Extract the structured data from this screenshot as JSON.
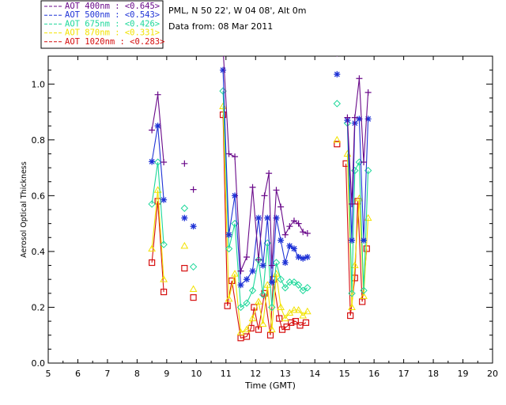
{
  "chart_data": {
    "type": "line",
    "header": {
      "line1": "PML, N 50 22', W 04 08', Alt 0m",
      "line2": "Data from: 08 Mar 2011"
    },
    "xlabel": "Time (GMT)",
    "ylabel": "Aerosol Optical Thickness",
    "xlim": [
      5,
      20
    ],
    "ylim": [
      0,
      1.1
    ],
    "xticks": [
      "5",
      "6",
      "7",
      "8",
      "9",
      "10",
      "11",
      "12",
      "13",
      "14",
      "15",
      "16",
      "17",
      "18",
      "19",
      "20"
    ],
    "yticks": [
      "0.0",
      "0.2",
      "0.4",
      "0.6",
      "0.8",
      "1.0"
    ],
    "legend_position": "top-left outside",
    "series": [
      {
        "name": "AOT  400nm : <0.645>",
        "color": "#6a0a8a",
        "marker": "plus",
        "segments": [
          [
            [
              8.5,
              0.835
            ],
            [
              8.7,
              0.962
            ],
            [
              8.9,
              0.72
            ]
          ],
          [
            [
              9.6,
              0.715
            ]
          ],
          [
            [
              9.9,
              0.622
            ]
          ],
          [
            [
              10.9,
              1.13
            ],
            [
              11.1,
              0.75
            ],
            [
              11.3,
              0.74
            ],
            [
              11.5,
              0.33
            ],
            [
              11.7,
              0.38
            ],
            [
              11.9,
              0.63
            ],
            [
              12.1,
              0.37
            ],
            [
              12.3,
              0.6
            ],
            [
              12.45,
              0.68
            ],
            [
              12.55,
              0.35
            ],
            [
              12.7,
              0.62
            ],
            [
              12.85,
              0.56
            ],
            [
              13.0,
              0.46
            ],
            [
              13.15,
              0.49
            ],
            [
              13.3,
              0.51
            ],
            [
              13.45,
              0.5
            ],
            [
              13.6,
              0.47
            ],
            [
              13.75,
              0.465
            ]
          ],
          [
            [
              14.75,
              1.11
            ]
          ],
          [
            [
              15.1,
              0.88
            ],
            [
              15.25,
              0.57
            ],
            [
              15.35,
              0.88
            ],
            [
              15.5,
              1.02
            ],
            [
              15.65,
              0.72
            ],
            [
              15.8,
              0.97
            ]
          ]
        ]
      },
      {
        "name": "AOT  500nm : <0.543>",
        "color": "#1f33d6",
        "marker": "asterisk",
        "segments": [
          [
            [
              8.5,
              0.722
            ],
            [
              8.7,
              0.85
            ],
            [
              8.9,
              0.585
            ]
          ],
          [
            [
              9.6,
              0.52
            ]
          ],
          [
            [
              9.9,
              0.49
            ]
          ],
          [
            [
              10.9,
              1.05
            ],
            [
              11.1,
              0.46
            ],
            [
              11.3,
              0.6
            ],
            [
              11.5,
              0.28
            ],
            [
              11.7,
              0.3
            ],
            [
              11.9,
              0.33
            ],
            [
              12.1,
              0.52
            ],
            [
              12.25,
              0.35
            ],
            [
              12.4,
              0.52
            ],
            [
              12.55,
              0.29
            ],
            [
              12.7,
              0.52
            ],
            [
              12.85,
              0.44
            ],
            [
              13.0,
              0.36
            ],
            [
              13.15,
              0.42
            ],
            [
              13.3,
              0.41
            ],
            [
              13.45,
              0.38
            ],
            [
              13.6,
              0.375
            ],
            [
              13.75,
              0.38
            ]
          ],
          [
            [
              14.75,
              1.035
            ]
          ],
          [
            [
              15.1,
              0.87
            ],
            [
              15.25,
              0.44
            ],
            [
              15.35,
              0.86
            ],
            [
              15.5,
              0.875
            ],
            [
              15.65,
              0.44
            ],
            [
              15.8,
              0.875
            ]
          ]
        ]
      },
      {
        "name": "AOT  675nm : <0.426>",
        "color": "#1ed89a",
        "marker": "diamond",
        "segments": [
          [
            [
              8.5,
              0.57
            ],
            [
              8.7,
              0.72
            ],
            [
              8.9,
              0.425
            ]
          ],
          [
            [
              9.6,
              0.555
            ]
          ],
          [
            [
              9.9,
              0.345
            ]
          ],
          [
            [
              10.9,
              0.975
            ],
            [
              11.1,
              0.41
            ],
            [
              11.3,
              0.5
            ],
            [
              11.5,
              0.2
            ],
            [
              11.7,
              0.215
            ],
            [
              11.9,
              0.26
            ],
            [
              12.1,
              0.37
            ],
            [
              12.25,
              0.245
            ],
            [
              12.4,
              0.43
            ],
            [
              12.55,
              0.2
            ],
            [
              12.7,
              0.36
            ],
            [
              12.85,
              0.3
            ],
            [
              13.0,
              0.27
            ],
            [
              13.15,
              0.29
            ],
            [
              13.3,
              0.29
            ],
            [
              13.45,
              0.28
            ],
            [
              13.6,
              0.26
            ],
            [
              13.75,
              0.27
            ]
          ],
          [
            [
              14.75,
              0.93
            ]
          ],
          [
            [
              15.1,
              0.86
            ],
            [
              15.25,
              0.25
            ],
            [
              15.35,
              0.69
            ],
            [
              15.5,
              0.72
            ],
            [
              15.65,
              0.26
            ],
            [
              15.8,
              0.69
            ]
          ]
        ]
      },
      {
        "name": "AOT  870nm : <0.331>",
        "color": "#f2e200",
        "marker": "triangle",
        "segments": [
          [
            [
              8.5,
              0.41
            ],
            [
              8.7,
              0.62
            ],
            [
              8.9,
              0.3
            ]
          ],
          [
            [
              9.6,
              0.42
            ]
          ],
          [
            [
              9.9,
              0.265
            ]
          ],
          [
            [
              10.9,
              0.92
            ],
            [
              11.1,
              0.23
            ],
            [
              11.3,
              0.32
            ],
            [
              11.5,
              0.11
            ],
            [
              11.7,
              0.12
            ],
            [
              11.9,
              0.16
            ],
            [
              12.1,
              0.22
            ],
            [
              12.25,
              0.14
            ],
            [
              12.4,
              0.28
            ],
            [
              12.55,
              0.12
            ],
            [
              12.7,
              0.32
            ],
            [
              12.85,
              0.2
            ],
            [
              13.0,
              0.16
            ],
            [
              13.15,
              0.18
            ],
            [
              13.3,
              0.19
            ],
            [
              13.45,
              0.19
            ],
            [
              13.6,
              0.17
            ],
            [
              13.75,
              0.185
            ]
          ],
          [
            [
              14.75,
              0.8
            ]
          ],
          [
            [
              15.1,
              0.75
            ],
            [
              15.25,
              0.2
            ],
            [
              15.35,
              0.35
            ],
            [
              15.5,
              0.59
            ],
            [
              15.65,
              0.24
            ],
            [
              15.8,
              0.52
            ]
          ]
        ]
      },
      {
        "name": "AOT 1020nm : <0.283>",
        "color": "#d60f0f",
        "marker": "square",
        "segments": [
          [
            [
              8.5,
              0.36
            ],
            [
              8.7,
              0.58
            ],
            [
              8.9,
              0.255
            ]
          ],
          [
            [
              9.6,
              0.34
            ]
          ],
          [
            [
              9.9,
              0.235
            ]
          ],
          [
            [
              10.9,
              0.89
            ],
            [
              11.05,
              0.205
            ],
            [
              11.2,
              0.295
            ],
            [
              11.5,
              0.09
            ],
            [
              11.7,
              0.095
            ],
            [
              11.85,
              0.125
            ],
            [
              11.95,
              0.2
            ],
            [
              12.1,
              0.12
            ],
            [
              12.3,
              0.25
            ],
            [
              12.5,
              0.1
            ],
            [
              12.6,
              0.3
            ],
            [
              12.8,
              0.16
            ],
            [
              12.9,
              0.12
            ],
            [
              13.05,
              0.13
            ],
            [
              13.2,
              0.145
            ],
            [
              13.35,
              0.15
            ],
            [
              13.5,
              0.135
            ],
            [
              13.7,
              0.145
            ]
          ],
          [
            [
              14.75,
              0.785
            ]
          ],
          [
            [
              15.05,
              0.715
            ],
            [
              15.2,
              0.17
            ],
            [
              15.35,
              0.305
            ],
            [
              15.45,
              0.58
            ],
            [
              15.6,
              0.22
            ],
            [
              15.75,
              0.41
            ]
          ]
        ]
      }
    ]
  }
}
